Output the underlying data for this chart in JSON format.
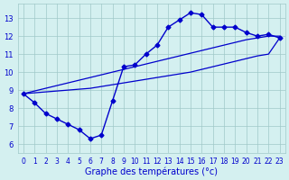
{
  "xlabel": "Graphe des températures (°c)",
  "background_color": "#d4f0f0",
  "line_color": "#0000cc",
  "grid_color": "#a0c8c8",
  "hours": [
    0,
    1,
    2,
    3,
    4,
    5,
    6,
    7,
    8,
    9,
    10,
    11,
    12,
    13,
    14,
    15,
    16,
    17,
    18,
    19,
    20,
    21,
    22,
    23
  ],
  "temp_actual": [
    8.8,
    8.3,
    7.7,
    7.4,
    7.1,
    6.8,
    6.3,
    6.5,
    8.4,
    10.3,
    10.4,
    11.0,
    11.5,
    12.5,
    12.9,
    13.3,
    13.2,
    12.5,
    12.5,
    12.5,
    12.2,
    12.0,
    12.1,
    11.9
  ],
  "temp_ref_upper": [
    8.8,
    8.95,
    9.1,
    9.25,
    9.4,
    9.55,
    9.7,
    9.85,
    10.0,
    10.15,
    10.3,
    10.45,
    10.6,
    10.75,
    10.9,
    11.05,
    11.2,
    11.35,
    11.5,
    11.65,
    11.8,
    11.9,
    12.0,
    12.0
  ],
  "temp_ref_lower": [
    8.8,
    8.85,
    8.9,
    8.95,
    9.0,
    9.05,
    9.1,
    9.2,
    9.3,
    9.4,
    9.5,
    9.6,
    9.7,
    9.8,
    9.9,
    10.0,
    10.15,
    10.3,
    10.45,
    10.6,
    10.75,
    10.9,
    11.0,
    11.9
  ],
  "xlim": [
    -0.5,
    23.5
  ],
  "ylim": [
    5.5,
    13.8
  ],
  "yticks": [
    6,
    7,
    8,
    9,
    10,
    11,
    12,
    13
  ],
  "xticks": [
    0,
    1,
    2,
    3,
    4,
    5,
    6,
    7,
    8,
    9,
    10,
    11,
    12,
    13,
    14,
    15,
    16,
    17,
    18,
    19,
    20,
    21,
    22,
    23
  ]
}
